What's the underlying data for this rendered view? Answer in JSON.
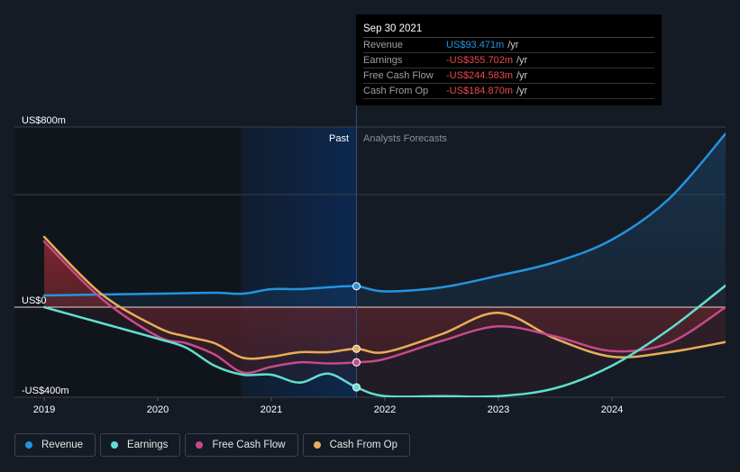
{
  "chart_data": {
    "type": "line",
    "title": "",
    "xlabel": "",
    "ylabel": "",
    "x_ticks": [
      "2019",
      "2020",
      "2021",
      "2022",
      "2023",
      "2024"
    ],
    "x_range": [
      2019.0,
      2025.0
    ],
    "y_range": [
      -400,
      800
    ],
    "y_ticks": [
      {
        "value": 800,
        "label": "US$800m"
      },
      {
        "value": 0,
        "label": "US$0"
      },
      {
        "value": -400,
        "label": "-US$400m"
      }
    ],
    "grid": true,
    "units": "US$m",
    "past_label": "Past",
    "forecast_label": "Analysts Forecasts",
    "present_x": 2021.75,
    "past_band_start_x": 2020.75,
    "series": [
      {
        "name": "Revenue",
        "color": "#2394df",
        "points": [
          [
            2019.0,
            52
          ],
          [
            2019.5,
            56
          ],
          [
            2020.0,
            60
          ],
          [
            2020.5,
            64
          ],
          [
            2020.75,
            60
          ],
          [
            2021.0,
            80
          ],
          [
            2021.25,
            80
          ],
          [
            2021.5,
            88
          ],
          [
            2021.75,
            93
          ],
          [
            2022.0,
            70
          ],
          [
            2022.5,
            88
          ],
          [
            2023.0,
            140
          ],
          [
            2023.5,
            200
          ],
          [
            2024.0,
            300
          ],
          [
            2024.5,
            480
          ],
          [
            2025.0,
            770
          ]
        ]
      },
      {
        "name": "Earnings",
        "color": "#5fe0cf",
        "points": [
          [
            2019.0,
            0
          ],
          [
            2019.5,
            -70
          ],
          [
            2020.0,
            -140
          ],
          [
            2020.25,
            -180
          ],
          [
            2020.5,
            -260
          ],
          [
            2020.75,
            -300
          ],
          [
            2021.0,
            -300
          ],
          [
            2021.25,
            -335
          ],
          [
            2021.5,
            -295
          ],
          [
            2021.75,
            -356
          ],
          [
            2022.0,
            -395
          ],
          [
            2022.5,
            -395
          ],
          [
            2023.0,
            -395
          ],
          [
            2023.5,
            -360
          ],
          [
            2024.0,
            -260
          ],
          [
            2024.5,
            -100
          ],
          [
            2025.0,
            96
          ]
        ]
      },
      {
        "name": "Free Cash Flow",
        "color": "#c8498b",
        "points": [
          [
            2019.0,
            292
          ],
          [
            2019.5,
            40
          ],
          [
            2020.0,
            -130
          ],
          [
            2020.25,
            -160
          ],
          [
            2020.5,
            -210
          ],
          [
            2020.75,
            -290
          ],
          [
            2021.0,
            -265
          ],
          [
            2021.25,
            -245
          ],
          [
            2021.5,
            -250
          ],
          [
            2021.75,
            -245
          ],
          [
            2022.0,
            -230
          ],
          [
            2022.5,
            -150
          ],
          [
            2023.0,
            -85
          ],
          [
            2023.5,
            -130
          ],
          [
            2024.0,
            -195
          ],
          [
            2024.5,
            -160
          ],
          [
            2025.0,
            0
          ]
        ]
      },
      {
        "name": "Cash From Op",
        "color": "#e9ad58",
        "points": [
          [
            2019.0,
            312
          ],
          [
            2019.5,
            60
          ],
          [
            2020.0,
            -90
          ],
          [
            2020.25,
            -130
          ],
          [
            2020.5,
            -160
          ],
          [
            2020.75,
            -225
          ],
          [
            2021.0,
            -220
          ],
          [
            2021.25,
            -200
          ],
          [
            2021.5,
            -200
          ],
          [
            2021.75,
            -185
          ],
          [
            2022.0,
            -200
          ],
          [
            2022.5,
            -120
          ],
          [
            2023.0,
            -25
          ],
          [
            2023.5,
            -140
          ],
          [
            2024.0,
            -220
          ],
          [
            2024.5,
            -200
          ],
          [
            2025.0,
            -155
          ]
        ]
      }
    ]
  },
  "tooltip": {
    "date": "Sep 30 2021",
    "rows": [
      {
        "label": "Revenue",
        "value": "US$93.471m",
        "unit": "/yr"
      },
      {
        "label": "Earnings",
        "value": "-US$355.702m",
        "unit": "/yr"
      },
      {
        "label": "Free Cash Flow",
        "value": "-US$244.583m",
        "unit": "/yr"
      },
      {
        "label": "Cash From Op",
        "value": "-US$184.870m",
        "unit": "/yr"
      }
    ]
  },
  "legend": [
    {
      "label": "Revenue",
      "color": "#2394df"
    },
    {
      "label": "Earnings",
      "color": "#5fe0cf"
    },
    {
      "label": "Free Cash Flow",
      "color": "#c8498b"
    },
    {
      "label": "Cash From Op",
      "color": "#e9ad58"
    }
  ]
}
